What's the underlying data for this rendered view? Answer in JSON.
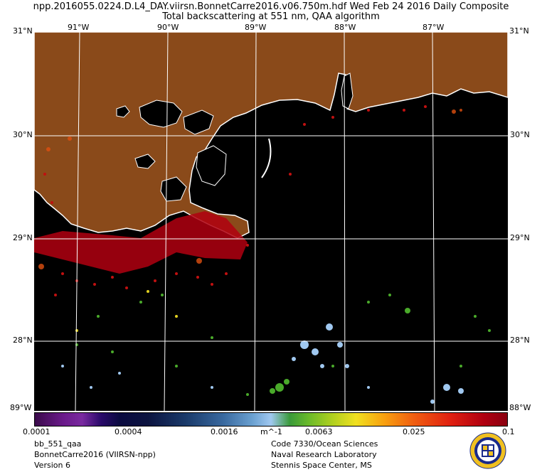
{
  "header": {
    "line1": "npp.2016055.0224.D.L4_DAY.viirsn.BonnetCarre2016.v06.750m.hdf   Wed Feb 24 2016 Daily Composite",
    "line2": "Total backscattering at 551 nm, QAA algorithm"
  },
  "axes": {
    "top_lon": [
      "91°W",
      "90°W",
      "89°W",
      "88°W",
      "87°W"
    ],
    "lat": [
      "30°N",
      "29°N",
      "28°N"
    ],
    "corner_top_left": "31°N",
    "corner_top_right": "31°N",
    "corner_bottom_left": "89°W",
    "corner_bottom_right": "88°W"
  },
  "colorbar": {
    "ticks": [
      "0.0001",
      "0.0004",
      "0.0016",
      "0.0063",
      "0.025",
      "0.1"
    ],
    "unit": "m^-1"
  },
  "footer": {
    "left": [
      "bb_551_qaa",
      "BonnetCarre2016 (VIIRSN-npp)",
      "Version 6"
    ],
    "right": [
      "Code 7330/Ocean Sciences",
      "Naval Research Laboratory",
      "Stennis Space Center, MS"
    ]
  },
  "colors": {
    "land": "#8a4a1a",
    "water": "#000000",
    "coast": "#ffffff",
    "grid": "#ffffff"
  }
}
